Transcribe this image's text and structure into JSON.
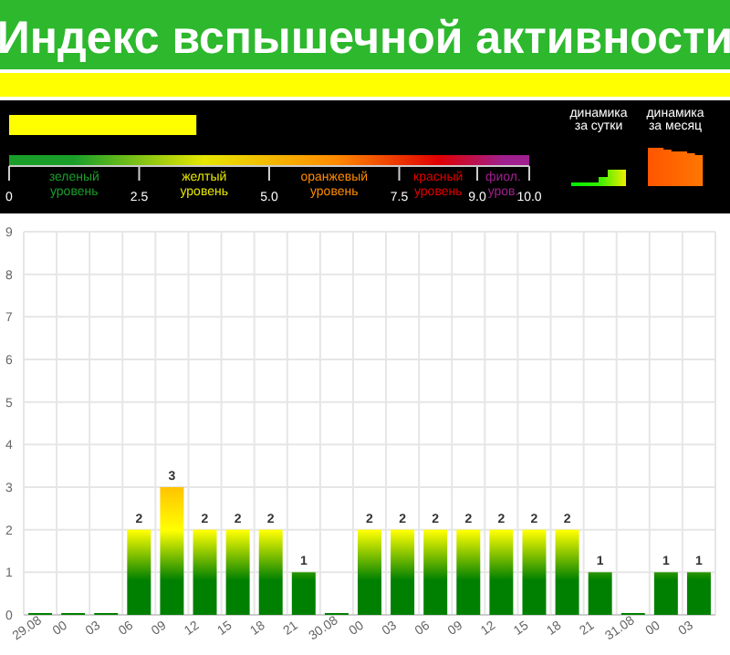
{
  "chart_data": [
    {
      "type": "bar",
      "orientation": "horizontal",
      "title": "Индекс вспышечной активности",
      "categories": [
        null
      ],
      "values": [
        3.6
      ],
      "color": "#ffff00",
      "xlim": [
        0,
        10
      ],
      "xticks": [
        0,
        2.5,
        {
          "value": 5,
          "label": "5.0"
        },
        7.5,
        {
          "value": 9,
          "label": "9.0"
        },
        {
          "value": 10,
          "label": "10.0"
        }
      ],
      "annotations": [
        "зеленый\nуровень",
        "желтый\nуровень",
        "оранжевый\nуровень",
        "красный\nуровень",
        "фиол.\nуров.",
        "динамика\nза сутки",
        "динамика\nза месяц"
      ]
    },
    {
      "type": "bar",
      "categories": [
        "29.08",
        "00",
        "03",
        "06",
        "09",
        "12",
        "15",
        "18",
        "21",
        "30.08",
        "00",
        "03",
        "06",
        "09",
        "12",
        "15",
        "18",
        "21",
        "31.08",
        "00",
        "03"
      ],
      "values": [
        0,
        0,
        0,
        2,
        3,
        2,
        2,
        2,
        1,
        0,
        2,
        2,
        2,
        2,
        2,
        2,
        2,
        1,
        0,
        1,
        1
      ],
      "value_labels": [
        null,
        null,
        null,
        "2",
        "3",
        "2",
        "2",
        "2",
        "1",
        null,
        "2",
        "2",
        "2",
        "2",
        "2",
        "2",
        "2",
        "1",
        null,
        "1",
        "1"
      ],
      "color": "#008000",
      "ylim": [
        0,
        9
      ],
      "yticks": [
        0,
        1,
        2,
        3,
        4,
        5,
        6,
        7,
        8,
        9
      ],
      "grid": true
    }
  ]
}
